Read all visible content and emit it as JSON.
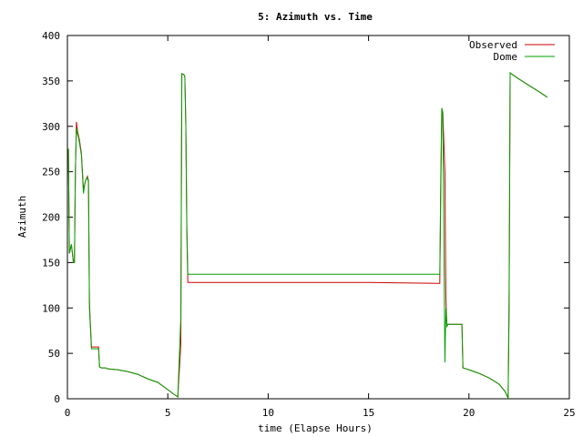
{
  "chart_data": {
    "type": "line",
    "title": "5: Azimuth vs. Time",
    "xlabel": "time (Elapse Hours)",
    "ylabel": "Azimuth",
    "xlim": [
      0,
      25
    ],
    "ylim": [
      0,
      400
    ],
    "xticks": [
      0,
      5,
      10,
      15,
      20,
      25
    ],
    "yticks": [
      0,
      50,
      100,
      150,
      200,
      250,
      300,
      350,
      400
    ],
    "grid": false,
    "legend_position": "top-right",
    "series": [
      {
        "name": "Observed",
        "color": "#cc0000",
        "x": [
          0.0,
          0.05,
          0.1,
          0.15,
          0.2,
          0.3,
          0.35,
          0.4,
          0.45,
          0.5,
          0.55,
          0.6,
          0.7,
          0.8,
          0.85,
          0.9,
          1.0,
          1.05,
          1.1,
          1.2,
          1.3,
          1.35,
          1.4,
          1.5,
          1.55,
          1.6,
          1.7,
          1.8,
          1.85,
          1.9,
          2.0,
          2.5,
          3.0,
          3.5,
          4.0,
          4.5,
          5.0,
          5.3,
          5.5,
          5.65,
          5.7,
          5.8,
          5.85,
          5.9,
          5.95,
          6.0,
          6.1,
          10.0,
          15.0,
          18.5,
          18.55,
          18.6,
          18.65,
          18.7,
          18.8,
          18.85,
          18.9,
          18.95,
          19.0,
          19.1,
          19.5,
          19.6,
          19.65,
          19.7,
          20.0,
          20.5,
          21.0,
          21.5,
          21.8,
          21.9,
          21.95,
          22.0,
          22.05,
          22.1,
          22.5,
          23.0,
          23.5,
          23.9
        ],
        "values": [
          275,
          275,
          160,
          165,
          170,
          150,
          150,
          250,
          305,
          295,
          290,
          285,
          270,
          230,
          235,
          240,
          245,
          240,
          105,
          57,
          57,
          57,
          57,
          57,
          57,
          35,
          34,
          34,
          34,
          34,
          33,
          32,
          30,
          27,
          22,
          18,
          10,
          5,
          2,
          60,
          358,
          357,
          355,
          300,
          185,
          128,
          128,
          128,
          128,
          127,
          127,
          230,
          320,
          315,
          250,
          110,
          80,
          82,
          82,
          82,
          82,
          82,
          82,
          34,
          32,
          28,
          23,
          16,
          8,
          3,
          1,
          100,
          358,
          358,
          352,
          345,
          338,
          332
        ]
      },
      {
        "name": "Dome",
        "color": "#00a000",
        "x": [
          0.0,
          0.05,
          0.1,
          0.15,
          0.2,
          0.3,
          0.35,
          0.4,
          0.45,
          0.5,
          0.55,
          0.6,
          0.7,
          0.8,
          0.85,
          0.9,
          1.0,
          1.05,
          1.1,
          1.2,
          1.3,
          1.35,
          1.4,
          1.5,
          1.55,
          1.6,
          1.7,
          1.8,
          1.85,
          1.9,
          2.0,
          2.5,
          3.0,
          3.5,
          4.0,
          4.5,
          5.0,
          5.3,
          5.5,
          5.65,
          5.7,
          5.8,
          5.85,
          5.9,
          5.95,
          6.0,
          6.1,
          10.0,
          15.0,
          18.5,
          18.55,
          18.6,
          18.65,
          18.7,
          18.8,
          18.85,
          18.9,
          18.95,
          19.0,
          19.1,
          19.5,
          19.6,
          19.65,
          19.7,
          20.0,
          20.5,
          21.0,
          21.5,
          21.8,
          21.9,
          21.95,
          22.0,
          22.05,
          22.1,
          22.5,
          23.0,
          23.5,
          23.9
        ],
        "values": [
          275,
          275,
          160,
          165,
          170,
          150,
          150,
          255,
          298,
          292,
          288,
          282,
          268,
          226,
          234,
          240,
          244,
          238,
          100,
          55,
          55,
          55,
          55,
          55,
          55,
          35,
          34,
          34,
          34,
          34,
          33,
          32,
          30,
          27,
          22,
          18,
          10,
          5,
          2,
          90,
          358,
          357,
          355,
          300,
          190,
          137,
          137,
          137,
          137,
          137,
          137,
          245,
          320,
          315,
          40,
          100,
          80,
          82,
          82,
          82,
          82,
          82,
          82,
          34,
          32,
          28,
          23,
          16,
          8,
          3,
          1,
          120,
          359,
          358,
          352,
          345,
          338,
          332
        ]
      }
    ]
  }
}
